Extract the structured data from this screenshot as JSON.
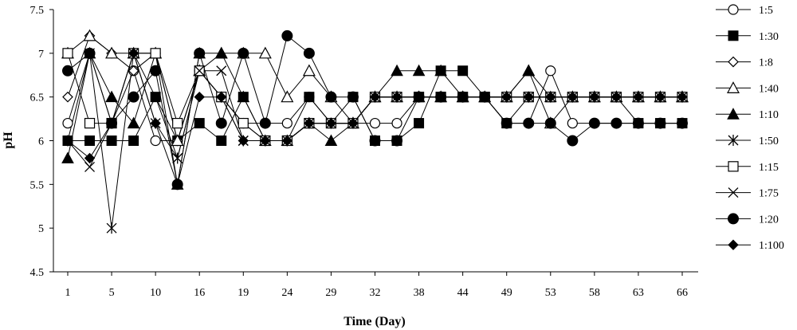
{
  "chart_data": {
    "type": "line",
    "title": "",
    "xlabel": "Time (Day)",
    "ylabel": "pH",
    "x_tick_labels": [
      "1",
      "5",
      "10",
      "16",
      "19",
      "24",
      "29",
      "32",
      "38",
      "44",
      "49",
      "53",
      "58",
      "63",
      "66"
    ],
    "y_ticks": [
      "4.5",
      "5",
      "5.5",
      "6",
      "6.5",
      "7",
      "7.5"
    ],
    "ylim": [
      4.5,
      7.5
    ],
    "grid": false,
    "legend_position": "right",
    "n_points": 29,
    "series": [
      {
        "name": "1:5",
        "marker": "circle-open",
        "values": [
          6.2,
          7.0,
          6.2,
          6.8,
          6.0,
          6.0,
          6.8,
          6.5,
          6.2,
          6.2,
          6.2,
          6.5,
          6.2,
          6.2,
          6.2,
          6.2,
          6.5,
          6.5,
          6.5,
          6.5,
          6.2,
          6.2,
          6.8,
          6.2,
          6.2,
          6.2,
          6.2,
          6.2,
          6.2
        ]
      },
      {
        "name": "1:30",
        "marker": "square-filled",
        "values": [
          6.0,
          6.0,
          6.0,
          6.0,
          6.5,
          6.0,
          6.2,
          6.0,
          6.5,
          6.0,
          6.0,
          6.5,
          6.2,
          6.5,
          6.0,
          6.0,
          6.2,
          6.8,
          6.8,
          6.5,
          6.2,
          6.5,
          6.5,
          6.5,
          6.5,
          6.5,
          6.2,
          6.2,
          6.2
        ]
      },
      {
        "name": "1:8",
        "marker": "diamond-open",
        "values": [
          6.5,
          7.2,
          7.0,
          6.8,
          7.0,
          6.0,
          6.8,
          6.5,
          6.2,
          6.0,
          6.0,
          6.2,
          6.2,
          6.2,
          6.5,
          6.5,
          6.5,
          6.5,
          6.5,
          6.5,
          6.5,
          6.5,
          6.5,
          6.5,
          6.5,
          6.5,
          6.5,
          6.5,
          6.5
        ]
      },
      {
        "name": "1:40",
        "marker": "triangle-open",
        "values": [
          7.0,
          7.2,
          7.0,
          7.0,
          7.0,
          6.0,
          6.8,
          7.0,
          7.0,
          7.0,
          6.5,
          6.8,
          6.5,
          6.2,
          6.5,
          6.5,
          6.5,
          6.5,
          6.5,
          6.5,
          6.5,
          6.8,
          6.2,
          6.5,
          6.5,
          6.5,
          6.5,
          6.5,
          6.5
        ]
      },
      {
        "name": "1:10",
        "marker": "triangle-filled",
        "values": [
          5.8,
          7.0,
          6.5,
          6.2,
          7.0,
          5.5,
          7.0,
          7.0,
          6.5,
          6.0,
          6.0,
          6.2,
          6.0,
          6.2,
          6.5,
          6.8,
          6.8,
          6.8,
          6.5,
          6.5,
          6.5,
          6.8,
          6.5,
          6.5,
          6.5,
          6.5,
          6.5,
          6.5,
          6.5
        ]
      },
      {
        "name": "1:50",
        "marker": "star",
        "values": [
          6.0,
          7.0,
          5.0,
          7.0,
          6.2,
          5.8,
          6.8,
          6.5,
          6.0,
          6.0,
          6.0,
          6.2,
          6.2,
          6.2,
          6.5,
          6.5,
          6.5,
          6.5,
          6.5,
          6.5,
          6.5,
          6.5,
          6.5,
          6.5,
          6.5,
          6.5,
          6.5,
          6.5,
          6.5
        ]
      },
      {
        "name": "1:15",
        "marker": "square-open",
        "values": [
          7.0,
          6.2,
          6.2,
          7.0,
          7.0,
          6.2,
          6.8,
          6.5,
          6.2,
          6.0,
          6.0,
          6.2,
          6.2,
          6.2,
          6.5,
          6.5,
          6.5,
          6.5,
          6.5,
          6.5,
          6.5,
          6.5,
          6.5,
          6.5,
          6.5,
          6.5,
          6.5,
          6.5,
          6.5
        ]
      },
      {
        "name": "1:75",
        "marker": "x",
        "values": [
          6.0,
          5.7,
          6.2,
          7.0,
          6.5,
          5.8,
          6.8,
          6.8,
          6.0,
          6.0,
          6.0,
          6.2,
          6.2,
          6.2,
          6.5,
          6.5,
          6.5,
          6.5,
          6.5,
          6.5,
          6.5,
          6.5,
          6.5,
          6.5,
          6.5,
          6.5,
          6.5,
          6.5,
          6.5
        ]
      },
      {
        "name": "1:20",
        "marker": "circle-filled",
        "values": [
          6.8,
          7.0,
          6.2,
          6.5,
          6.8,
          5.5,
          7.0,
          6.2,
          7.0,
          6.2,
          7.2,
          7.0,
          6.5,
          6.5,
          6.0,
          6.0,
          6.5,
          6.5,
          6.5,
          6.5,
          6.2,
          6.2,
          6.2,
          6.0,
          6.2,
          6.2,
          6.2,
          6.2,
          6.2
        ]
      },
      {
        "name": "1:100",
        "marker": "diamond-filled",
        "values": [
          6.0,
          5.8,
          6.2,
          7.0,
          6.2,
          5.5,
          6.5,
          6.5,
          6.0,
          6.0,
          6.0,
          6.2,
          6.2,
          6.2,
          6.5,
          6.5,
          6.5,
          6.5,
          6.5,
          6.5,
          6.5,
          6.5,
          6.5,
          6.5,
          6.5,
          6.5,
          6.5,
          6.5,
          6.5
        ]
      }
    ]
  }
}
